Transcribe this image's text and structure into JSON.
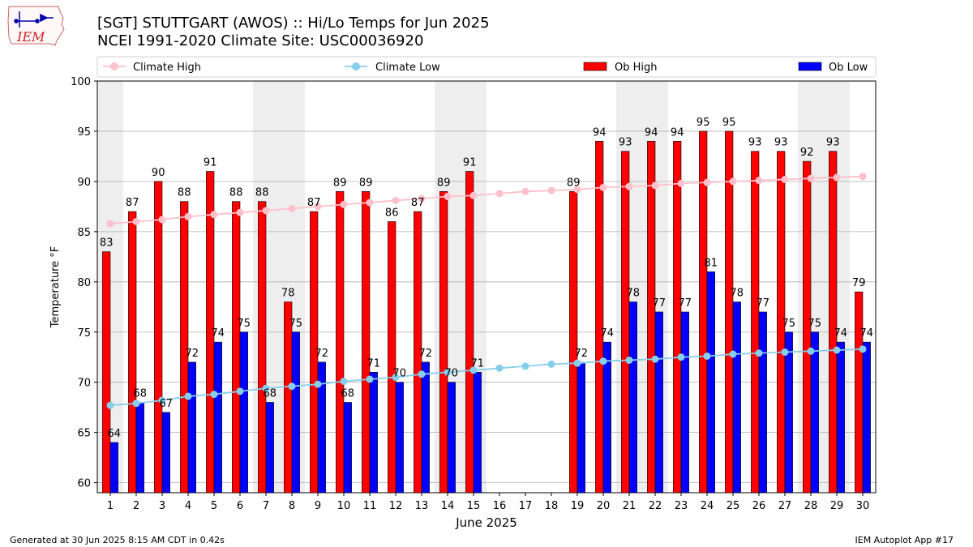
{
  "header": {
    "title_line1": "[SGT] STUTTGART (AWOS) :: Hi/Lo Temps for Jun 2025",
    "title_line2": "NCEI 1991-2020 Climate Site: USC00036920",
    "logo_text": "IEM"
  },
  "footer": {
    "left": "Generated at 30 Jun 2025 8:15 AM CDT in 0.42s",
    "right": "IEM Autoplot App #17"
  },
  "colors": {
    "ob_high": "#ff0000",
    "ob_low": "#0000ff",
    "climate_high": "#ffc0cb",
    "climate_low": "#87ceeb",
    "weekend_shade": "#eeeeee",
    "grid": "#b0b0b0"
  },
  "chart_data": {
    "type": "bar",
    "xlabel": "June 2025",
    "ylabel": "Temperature °F",
    "ylim": [
      59,
      100
    ],
    "yticks": [
      60,
      65,
      70,
      75,
      80,
      85,
      90,
      95,
      100
    ],
    "grid": true,
    "legend_position": "top",
    "categories": [
      "1",
      "2",
      "3",
      "4",
      "5",
      "6",
      "7",
      "8",
      "9",
      "10",
      "11",
      "12",
      "13",
      "14",
      "15",
      "16",
      "17",
      "18",
      "19",
      "20",
      "21",
      "22",
      "23",
      "24",
      "25",
      "26",
      "27",
      "28",
      "29",
      "30"
    ],
    "shaded_days": [
      1,
      7,
      8,
      14,
      15,
      21,
      22,
      28,
      29
    ],
    "series": [
      {
        "name": "Climate High",
        "kind": "line",
        "values": [
          85.8,
          86.0,
          86.2,
          86.5,
          86.7,
          86.9,
          87.1,
          87.3,
          87.5,
          87.7,
          87.9,
          88.1,
          88.3,
          88.5,
          88.6,
          88.8,
          89.0,
          89.1,
          89.2,
          89.4,
          89.5,
          89.6,
          89.8,
          89.9,
          90.0,
          90.1,
          90.2,
          90.3,
          90.4,
          90.5
        ]
      },
      {
        "name": "Climate Low",
        "kind": "line",
        "values": [
          67.7,
          67.9,
          68.2,
          68.6,
          68.8,
          69.1,
          69.4,
          69.6,
          69.8,
          70.1,
          70.3,
          70.5,
          70.8,
          71.0,
          71.2,
          71.4,
          71.6,
          71.8,
          71.9,
          72.1,
          72.2,
          72.3,
          72.5,
          72.6,
          72.8,
          72.9,
          73.0,
          73.1,
          73.2,
          73.3
        ]
      },
      {
        "name": "Ob High",
        "kind": "bar",
        "values": [
          83,
          87,
          90,
          88,
          91,
          88,
          88,
          78,
          87,
          89,
          89,
          86,
          87,
          89,
          91,
          null,
          null,
          null,
          89,
          94,
          93,
          94,
          94,
          95,
          95,
          93,
          93,
          92,
          93,
          79
        ]
      },
      {
        "name": "Ob Low",
        "kind": "bar",
        "values": [
          64,
          68,
          67,
          72,
          74,
          75,
          68,
          75,
          72,
          68,
          71,
          70,
          72,
          70,
          71,
          null,
          null,
          null,
          72,
          74,
          78,
          77,
          77,
          81,
          78,
          77,
          75,
          75,
          74,
          74
        ]
      }
    ]
  }
}
